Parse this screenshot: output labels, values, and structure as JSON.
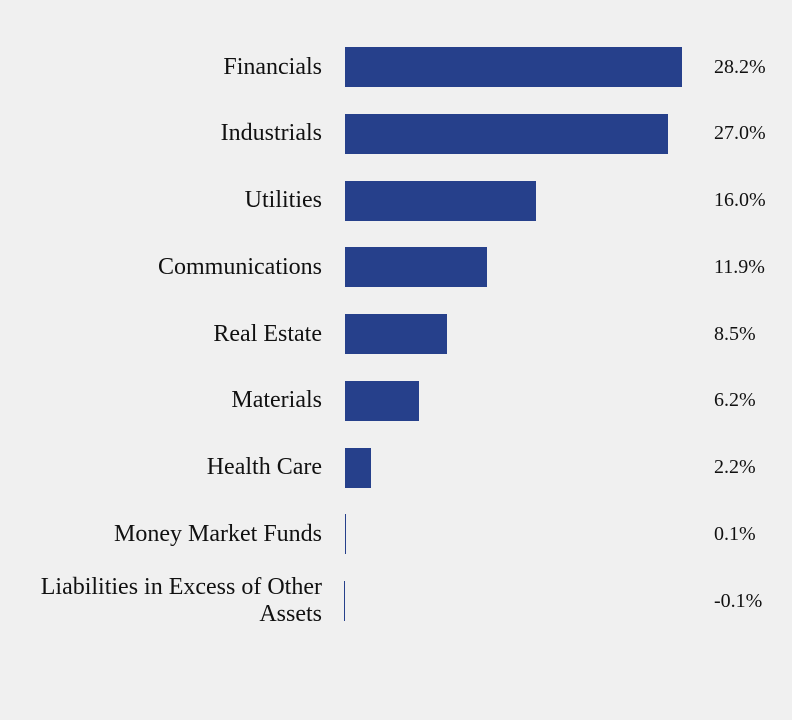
{
  "chart_data": {
    "type": "bar",
    "orientation": "horizontal",
    "color": "#26408b",
    "categories": [
      "Financials",
      "Industrials",
      "Utilities",
      "Communications",
      "Real Estate",
      "Materials",
      "Health Care",
      "Money Market Funds",
      "Liabilities in Excess of Other Assets"
    ],
    "values": [
      28.2,
      27.0,
      16.0,
      11.9,
      8.5,
      6.2,
      2.2,
      0.1,
      -0.1
    ],
    "value_labels": [
      "28.2%",
      "27.0%",
      "16.0%",
      "11.9%",
      "8.5%",
      "6.2%",
      "2.2%",
      "0.1%",
      "-0.1%"
    ]
  }
}
